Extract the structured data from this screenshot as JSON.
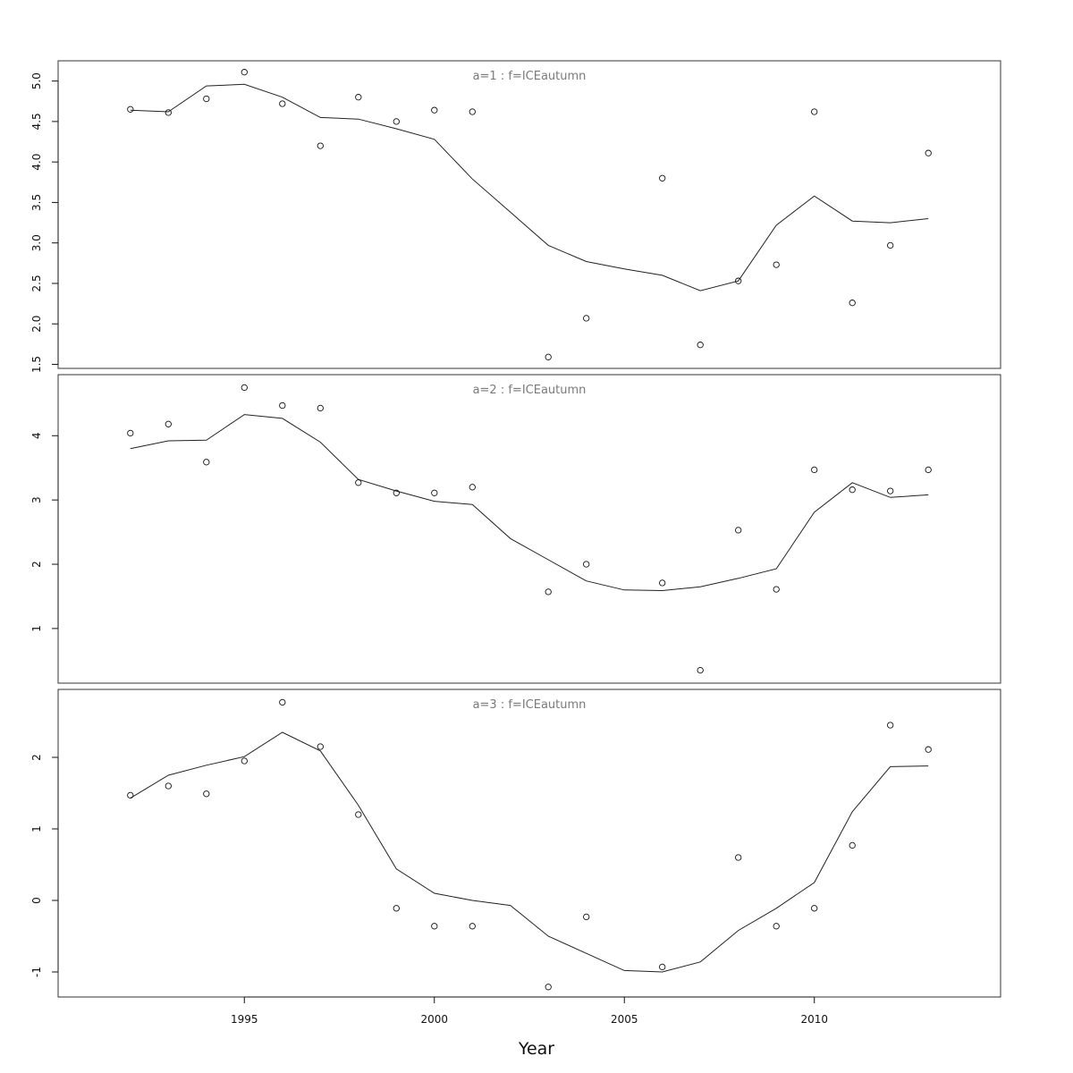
{
  "chart_data": {
    "type": "scatter",
    "xlabel": "Year",
    "x_ticks": [
      1995,
      2000,
      2005,
      2010
    ],
    "xlim": [
      1990.1,
      2014.9
    ],
    "panels": [
      {
        "title": "a=1  :  f=ICEautumn",
        "ylim": [
          1.45,
          5.25
        ],
        "y_ticks": [
          1.5,
          2.0,
          2.5,
          3.0,
          3.5,
          4.0,
          4.5,
          5.0
        ],
        "y_tick_labels": [
          "1.5",
          "2.0",
          "2.5",
          "3.0",
          "3.5",
          "4.0",
          "4.5",
          "5.0"
        ],
        "points": {
          "x": [
            1992,
            1993,
            1994,
            1995,
            1996,
            1997,
            1998,
            1999,
            2000,
            2001,
            2003,
            2004,
            2006,
            2007,
            2008,
            2009,
            2010,
            2011,
            2012,
            2013
          ],
          "y": [
            4.65,
            4.61,
            4.78,
            5.11,
            4.72,
            4.2,
            4.8,
            4.5,
            4.64,
            4.62,
            1.59,
            2.07,
            3.8,
            1.74,
            2.53,
            2.73,
            4.62,
            2.26,
            2.97,
            4.11
          ]
        },
        "fit": {
          "x": [
            1992,
            1993,
            1994,
            1995,
            1996,
            1997,
            1998,
            1999,
            2000,
            2001,
            2002,
            2003,
            2004,
            2005,
            2006,
            2007,
            2008,
            2009,
            2010,
            2011,
            2012,
            2013
          ],
          "y": [
            4.64,
            4.62,
            4.94,
            4.96,
            4.8,
            4.55,
            4.53,
            4.41,
            4.28,
            3.79,
            3.38,
            2.97,
            2.77,
            2.68,
            2.6,
            2.41,
            2.53,
            3.22,
            3.58,
            3.27,
            3.25,
            3.3
          ]
        }
      },
      {
        "title": "a=2  :  f=ICEautumn",
        "ylim": [
          0.15,
          4.95
        ],
        "y_ticks": [
          1,
          2,
          3,
          4
        ],
        "y_tick_labels": [
          "1",
          "2",
          "3",
          "4"
        ],
        "points": {
          "x": [
            1992,
            1993,
            1994,
            1995,
            1996,
            1997,
            1998,
            1999,
            2000,
            2001,
            2003,
            2004,
            2006,
            2007,
            2008,
            2009,
            2010,
            2011,
            2012,
            2013
          ],
          "y": [
            4.04,
            4.18,
            3.59,
            4.75,
            4.47,
            4.43,
            3.27,
            3.11,
            3.11,
            3.2,
            1.57,
            2.0,
            1.71,
            0.35,
            2.53,
            1.61,
            3.47,
            3.16,
            3.14,
            3.47
          ]
        },
        "fit": {
          "x": [
            1992,
            1993,
            1994,
            1995,
            1996,
            1997,
            1998,
            1999,
            2000,
            2001,
            2002,
            2003,
            2004,
            2005,
            2006,
            2007,
            2008,
            2009,
            2010,
            2011,
            2012,
            2013
          ],
          "y": [
            3.8,
            3.92,
            3.93,
            4.33,
            4.27,
            3.9,
            3.32,
            3.14,
            2.98,
            2.93,
            2.4,
            2.07,
            1.74,
            1.6,
            1.59,
            1.65,
            1.78,
            1.93,
            2.81,
            3.27,
            3.04,
            3.08
          ]
        }
      },
      {
        "title": "a=3  :  f=ICEautumn",
        "ylim": [
          -1.35,
          2.95
        ],
        "y_ticks": [
          -1,
          0,
          1,
          2
        ],
        "y_tick_labels": [
          "-1",
          "0",
          "1",
          "2"
        ],
        "points": {
          "x": [
            1992,
            1993,
            1994,
            1995,
            1996,
            1997,
            1998,
            1999,
            2000,
            2001,
            2003,
            2004,
            2006,
            2008,
            2009,
            2010,
            2011,
            2012,
            2013
          ],
          "y": [
            1.47,
            1.6,
            1.49,
            1.95,
            2.77,
            2.15,
            1.2,
            -0.11,
            -0.36,
            -0.36,
            -1.21,
            -0.23,
            -0.93,
            0.6,
            -0.36,
            -0.11,
            0.77,
            2.45,
            2.11
          ]
        },
        "fit": {
          "x": [
            1992,
            1993,
            1994,
            1995,
            1996,
            1997,
            1998,
            1999,
            2000,
            2001,
            2002,
            2003,
            2004,
            2005,
            2006,
            2007,
            2008,
            2009,
            2010,
            2011,
            2012,
            2013
          ],
          "y": [
            1.43,
            1.75,
            1.89,
            2.01,
            2.35,
            2.09,
            1.33,
            0.44,
            0.1,
            0.0,
            -0.07,
            -0.5,
            -0.74,
            -0.98,
            -1.0,
            -0.86,
            -0.42,
            -0.11,
            0.25,
            1.24,
            1.87,
            1.88
          ]
        }
      }
    ]
  }
}
